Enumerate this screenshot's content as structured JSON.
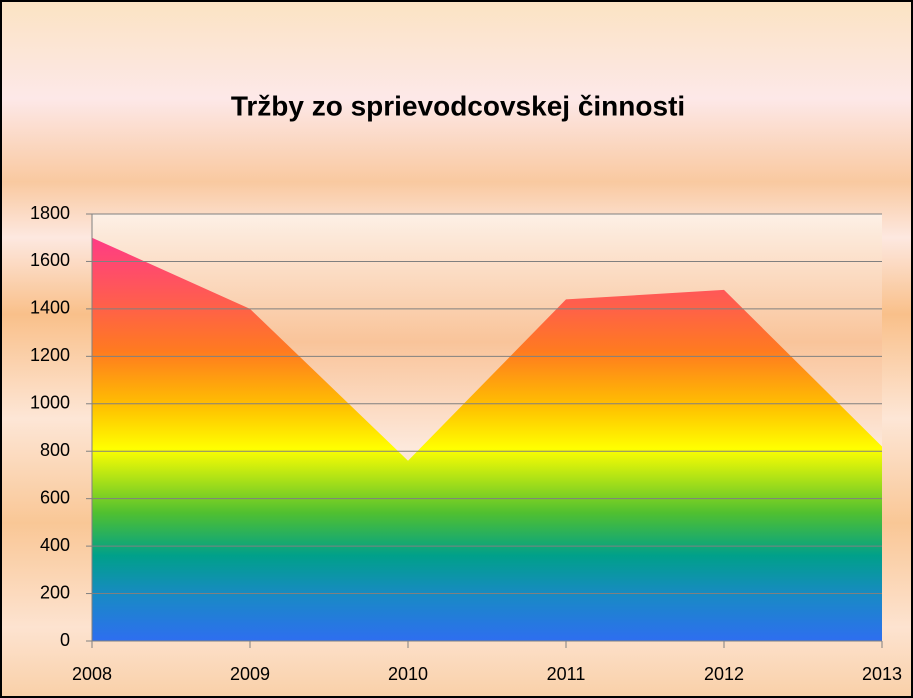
{
  "chart_data": {
    "type": "area",
    "title": "Tržby zo sprievodcovskej činnosti",
    "categories": [
      "2008",
      "2009",
      "2010",
      "2011",
      "2012",
      "2013"
    ],
    "values": [
      1700,
      1400,
      760,
      1440,
      1480,
      820
    ],
    "ylim": [
      0,
      1800
    ],
    "yticks": [
      0,
      200,
      400,
      600,
      800,
      1000,
      1200,
      1400,
      1600,
      1800
    ],
    "grid": true
  }
}
